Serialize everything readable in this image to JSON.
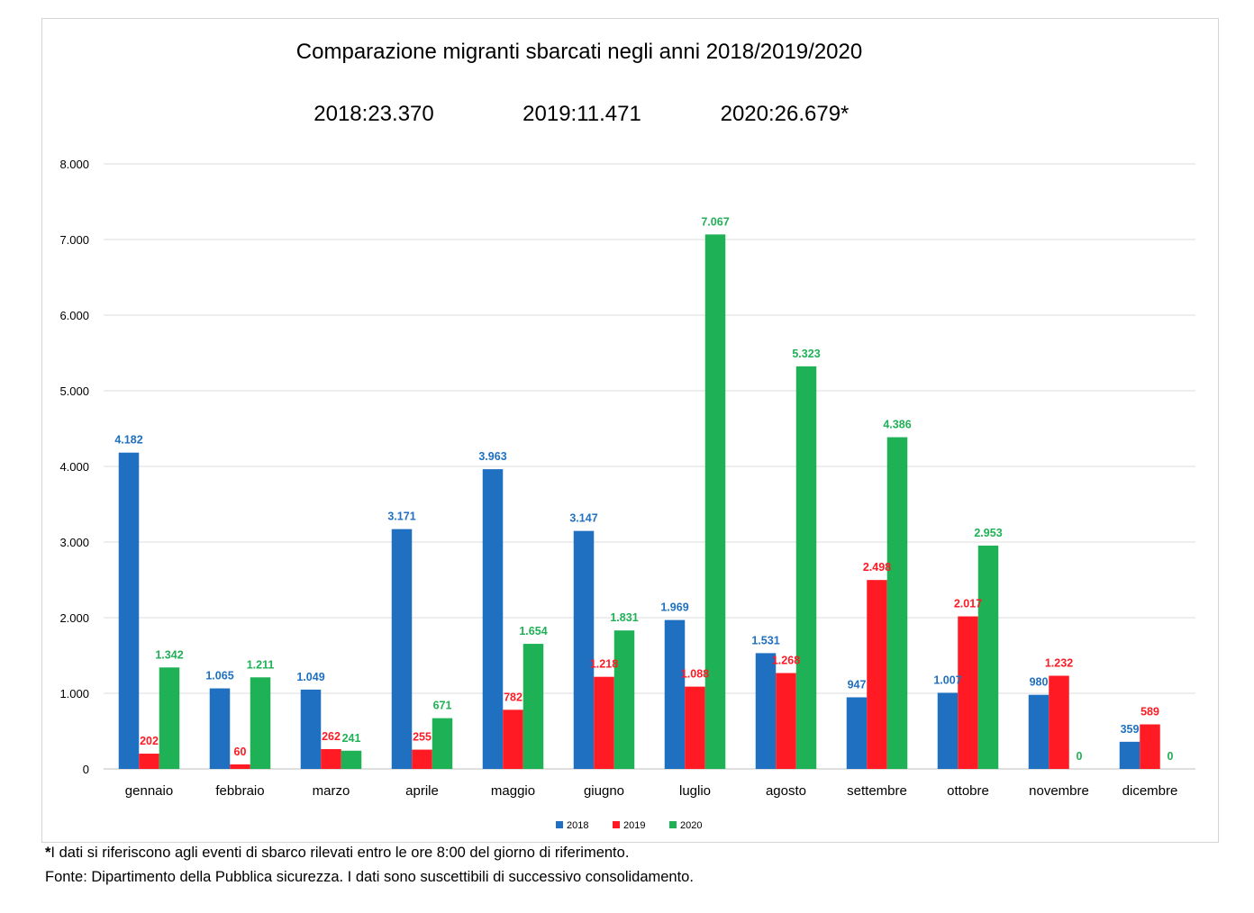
{
  "chart_data": {
    "type": "bar",
    "title": "Comparazione migranti sbarcati negli anni 2018/2019/2020",
    "totals": [
      "2018:23.370",
      "2019:11.471",
      "2020:26.679*"
    ],
    "categories": [
      "gennaio",
      "febbraio",
      "marzo",
      "aprile",
      "maggio",
      "giugno",
      "luglio",
      "agosto",
      "settembre",
      "ottobre",
      "novembre",
      "dicembre"
    ],
    "series": [
      {
        "name": "2018",
        "color": "#1f70c1",
        "values": [
          4182,
          1065,
          1049,
          3171,
          3963,
          3147,
          1969,
          1531,
          947,
          1007,
          980,
          359
        ],
        "labels": [
          "4.182",
          "1.065",
          "1.049",
          "3.171",
          "3.963",
          "3.147",
          "1.969",
          "1.531",
          "947",
          "1.007",
          "980",
          "359"
        ]
      },
      {
        "name": "2019",
        "color": "#ff1a24",
        "values": [
          202,
          60,
          262,
          255,
          782,
          1218,
          1088,
          1268,
          2498,
          2017,
          1232,
          589
        ],
        "labels": [
          "202",
          "60",
          "262",
          "255",
          "782",
          "1.218",
          "1.088",
          "1.268",
          "2.498",
          "2.017",
          "1.232",
          "589"
        ]
      },
      {
        "name": "2020",
        "color": "#1fb156",
        "values": [
          1342,
          1211,
          241,
          671,
          1654,
          1831,
          7067,
          5323,
          4386,
          2953,
          0,
          0
        ],
        "labels": [
          "1.342",
          "1.211",
          "241",
          "671",
          "1.654",
          "1.831",
          "7.067",
          "5.323",
          "4.386",
          "2.953",
          "0",
          "0"
        ]
      }
    ],
    "y_ticks": [
      "0",
      "1.000",
      "2.000",
      "3.000",
      "4.000",
      "5.000",
      "6.000",
      "7.000",
      "8.000"
    ],
    "ylim": [
      0,
      8000
    ],
    "grid": true,
    "legend_position": "bottom"
  },
  "footnotes": {
    "line1_star": "*",
    "line1": "I dati si riferiscono agli eventi di sbarco rilevati entro le ore 8:00 del giorno di riferimento.",
    "line2": "Fonte: Dipartimento della Pubblica sicurezza. I dati sono suscettibili di successivo consolidamento."
  }
}
